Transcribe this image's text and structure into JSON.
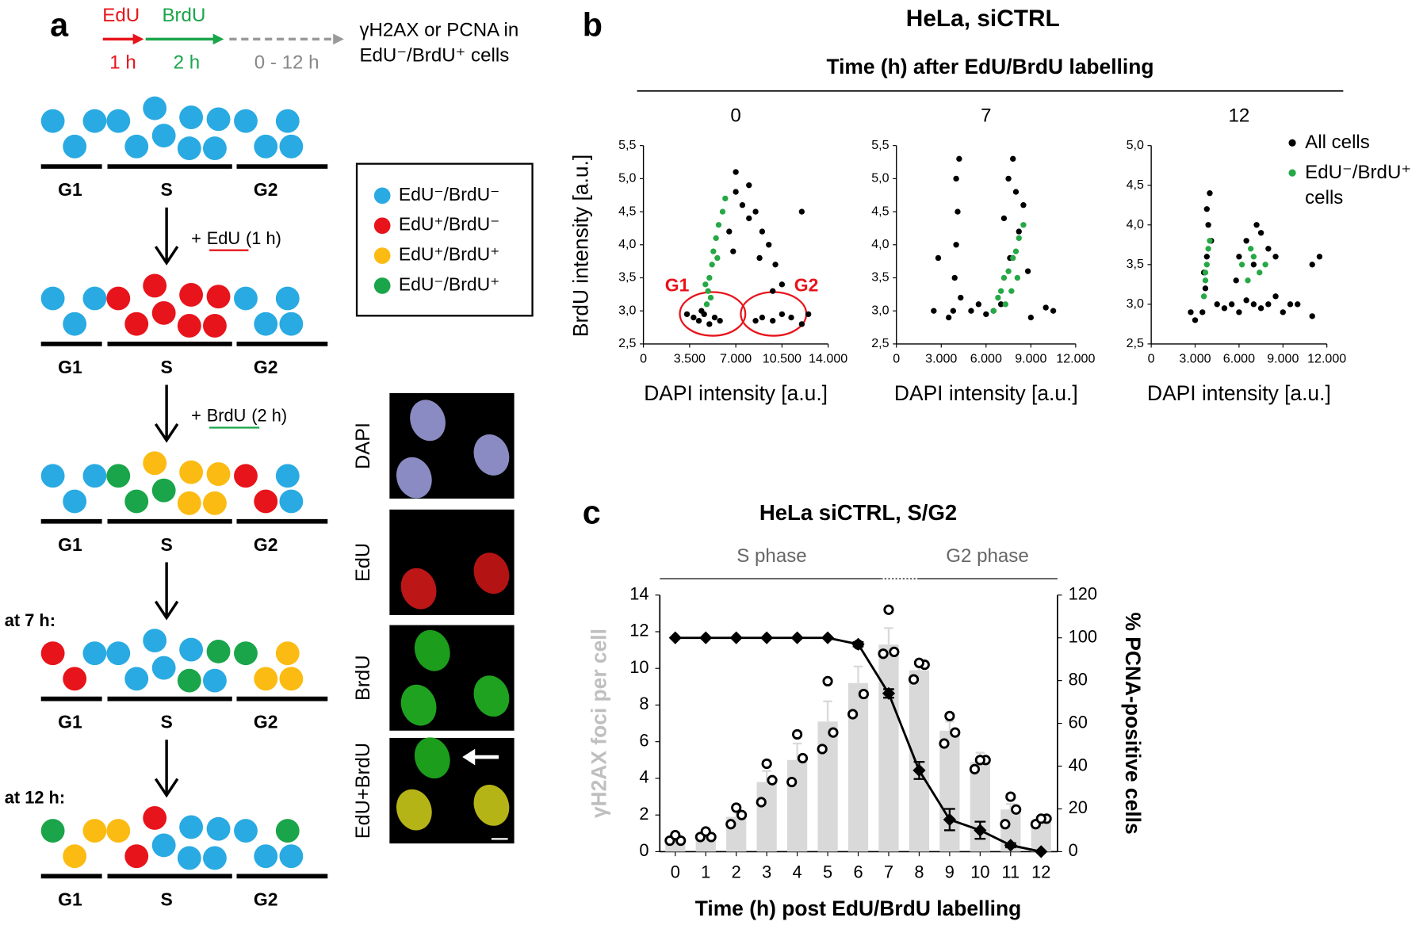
{
  "panel_labels": [
    "a",
    "b",
    "c"
  ],
  "scheme": {
    "timeline": {
      "pulse1": "EdU",
      "pulse2": "BrdU",
      "duration1": "1 h",
      "duration2": "2 h",
      "chase": "0 - 12 h",
      "readout": [
        "γH2AX or PCNA in",
        "EdU⁻/BrdU⁺ cells"
      ]
    },
    "phases": [
      "G1",
      "S",
      "G2"
    ],
    "steps": [
      {
        "prefix": "+",
        "agent": "EdU",
        "duration": "(1 h)"
      },
      {
        "prefix": "+",
        "agent": "BrdU",
        "duration": "(2 h)"
      },
      {
        "label": "at 7 h:"
      },
      {
        "label": "at 12 h:"
      }
    ],
    "legend": [
      "EdU⁻/BrdU⁻",
      "EdU⁺/BrdU⁻",
      "EdU⁺/BrdU⁺",
      "EdU⁻/BrdU⁺"
    ],
    "images": [
      "DAPI",
      "EdU",
      "BrdU",
      "EdU+BrdU"
    ]
  },
  "figure_b": {
    "title": "HeLa, siCTRL",
    "subtitle": "Time (h) after EdU/BrdU labelling"
  },
  "chart_data": [
    {
      "type": "scatter",
      "title": "0",
      "xlabel": "DAPI intensity [a.u.]",
      "ylabel": "BrdU intensity [a.u.]",
      "xlim": [
        0,
        14000
      ],
      "xticks": [
        0,
        {
          "value": 3500,
          "label": "3.500"
        },
        {
          "value": 7000,
          "label": "7.000"
        },
        {
          "value": 10500,
          "label": "10.500"
        },
        {
          "value": 14000,
          "label": "14.000"
        }
      ],
      "ylim": [
        2.5,
        5.5
      ],
      "yticks": [
        {
          "value": 2.5,
          "label": "2,5"
        },
        {
          "value": 3,
          "label": "3,0"
        },
        {
          "value": 3.5,
          "label": "3,5"
        },
        {
          "value": 4,
          "label": "4,0"
        },
        {
          "value": 4.5,
          "label": "4,5"
        },
        {
          "value": 5,
          "label": "5,0"
        },
        {
          "value": 5.5,
          "label": "5,5"
        }
      ],
      "annotations": [
        "G1",
        "G2"
      ],
      "annotation_color": "#e8141b",
      "series": [
        {
          "color": "#000000",
          "x": [
            3800,
            4200,
            4600,
            5000,
            5400,
            4400,
            5800,
            3300,
            6500,
            7000,
            7500,
            8000,
            8500,
            9000,
            9500,
            10000,
            10500,
            7000,
            8000,
            6800,
            8800,
            9800,
            9000,
            9800,
            10500,
            11200,
            12000,
            12500,
            8500,
            12000
          ],
          "values": [
            2.9,
            2.85,
            2.95,
            2.8,
            2.9,
            3.0,
            2.85,
            2.95,
            4.2,
            4.8,
            4.6,
            4.4,
            4.5,
            4.2,
            4.0,
            3.7,
            3.4,
            5.1,
            4.9,
            3.9,
            3.8,
            3.3,
            2.9,
            2.85,
            2.95,
            2.9,
            2.8,
            2.95,
            2.85,
            4.5
          ]
        },
        {
          "color": "#27a846",
          "x": [
            4800,
            4900,
            5000,
            5200,
            5300,
            5500,
            5700,
            6000,
            6200,
            4700,
            5100,
            5600
          ],
          "values": [
            3.1,
            3.3,
            3.5,
            3.7,
            3.9,
            4.1,
            4.3,
            4.5,
            4.7,
            3.4,
            3.2,
            3.8
          ]
        }
      ]
    },
    {
      "type": "scatter",
      "title": "7",
      "xlabel": "DAPI intensity [a.u.]",
      "xlim": [
        0,
        12000
      ],
      "xticks": [
        0,
        {
          "value": 3000,
          "label": "3.000"
        },
        {
          "value": 6000,
          "label": "6.000"
        },
        {
          "value": 9000,
          "label": "9.000"
        },
        {
          "value": 12000,
          "label": "12.000"
        }
      ],
      "ylim": [
        2.5,
        5.5
      ],
      "yticks": [
        {
          "value": 2.5,
          "label": "2,5"
        },
        {
          "value": 3,
          "label": "3,0"
        },
        {
          "value": 3.5,
          "label": "3,5"
        },
        {
          "value": 4,
          "label": "4,0"
        },
        {
          "value": 4.5,
          "label": "4,5"
        },
        {
          "value": 5,
          "label": "5,0"
        },
        {
          "value": 5.5,
          "label": "5,5"
        }
      ],
      "series": [
        {
          "color": "#000000",
          "x": [
            2800,
            3800,
            3900,
            4000,
            4100,
            4000,
            4200,
            4300,
            3500,
            5000,
            5500,
            6000,
            6500,
            7000,
            2500,
            9000,
            10000,
            7200,
            7500,
            7800,
            8000,
            8200,
            7600,
            8500,
            8800,
            10500
          ],
          "values": [
            3.8,
            3.0,
            3.5,
            4.0,
            4.5,
            5.0,
            5.3,
            3.2,
            2.9,
            3.0,
            3.1,
            2.95,
            3.0,
            3.1,
            3.0,
            2.9,
            3.05,
            4.4,
            5.0,
            5.3,
            4.8,
            4.2,
            3.8,
            4.6,
            3.6,
            3.0
          ]
        },
        {
          "color": "#27a846",
          "x": [
            6500,
            6800,
            7000,
            7200,
            7500,
            7800,
            8000,
            8200,
            8500,
            7300,
            7700,
            8100
          ],
          "values": [
            3.0,
            3.2,
            3.3,
            3.5,
            3.6,
            3.8,
            3.9,
            4.1,
            4.3,
            3.1,
            3.3,
            3.5
          ]
        }
      ]
    },
    {
      "type": "scatter",
      "title": "12",
      "xlabel": "DAPI intensity [a.u.]",
      "xlim": [
        0,
        12000
      ],
      "xticks": [
        0,
        {
          "value": 3000,
          "label": "3.000"
        },
        {
          "value": 6000,
          "label": "6.000"
        },
        {
          "value": 9000,
          "label": "9.000"
        },
        {
          "value": 12000,
          "label": "12.000"
        }
      ],
      "ylim": [
        2.5,
        5.0
      ],
      "yticks": [
        {
          "value": 2.5,
          "label": "2,5"
        },
        {
          "value": 3,
          "label": "3,0"
        },
        {
          "value": 3.5,
          "label": "3,5"
        },
        {
          "value": 4,
          "label": "4,0"
        },
        {
          "value": 4.5,
          "label": "4,5"
        },
        {
          "value": 5,
          "label": "5,0"
        }
      ],
      "legend": "upper right",
      "series": [
        {
          "name": "All cells",
          "color": "#000000",
          "x": [
            3500,
            3700,
            3800,
            3900,
            4000,
            3600,
            4100,
            3800,
            3000,
            2700,
            4500,
            5000,
            5500,
            6000,
            6500,
            7000,
            7500,
            8000,
            8500,
            9000,
            9500,
            10000,
            6000,
            6500,
            7000,
            7500,
            8000,
            8500,
            7200,
            11500,
            11000,
            11000,
            5800
          ],
          "values": [
            2.9,
            3.2,
            3.6,
            4.0,
            4.4,
            3.4,
            3.8,
            4.2,
            2.8,
            2.9,
            3.0,
            2.95,
            3.0,
            2.9,
            3.05,
            3.0,
            2.95,
            3.0,
            3.1,
            2.9,
            3.0,
            3.0,
            3.6,
            3.8,
            3.5,
            3.9,
            3.7,
            3.6,
            4.0,
            3.6,
            3.5,
            2.85,
            3.3
          ]
        },
        {
          "name": "EdU⁻/BrdU⁺ cells",
          "color": "#27a846",
          "x": [
            3600,
            3700,
            3800,
            3900,
            4000,
            3700,
            6200,
            6600,
            7000,
            7400,
            7800,
            6800
          ],
          "values": [
            3.1,
            3.3,
            3.5,
            3.7,
            3.8,
            3.4,
            3.5,
            3.3,
            3.6,
            3.4,
            3.5,
            3.7
          ]
        }
      ]
    },
    {
      "type": "bar",
      "title": "HeLa siCTRL, S/G2",
      "annotations": [
        "S phase",
        "G2 phase"
      ],
      "categories": [
        "0",
        "1",
        "2",
        "3",
        "4",
        "5",
        "6",
        "7",
        "8",
        "9",
        "10",
        "11",
        "12"
      ],
      "xlabel": "Time (h) post EdU/BrdU labelling",
      "ylabel": "γH2AX foci per cell",
      "ylabel_color": "#bfbfbf",
      "y2label": "% PCNA-positive cells",
      "ylim": [
        0,
        14
      ],
      "yticks": [
        0,
        2,
        4,
        6,
        8,
        10,
        12,
        14
      ],
      "y2lim": [
        0,
        120
      ],
      "y2ticks": [
        0,
        20,
        40,
        60,
        80,
        100,
        120
      ],
      "series": [
        {
          "type": "bar",
          "color": "#d9d9d9",
          "values": [
            0.7,
            0.9,
            1.9,
            3.8,
            5.0,
            7.1,
            9.2,
            11.3,
            9.9,
            6.6,
            4.9,
            2.3,
            1.7
          ],
          "errors": [
            0.1,
            0.1,
            0.4,
            0.6,
            0.9,
            1.1,
            0.9,
            0.9,
            0.4,
            0.5,
            0.5,
            0.3,
            0.2
          ]
        },
        {
          "type": "points",
          "color": "#000000",
          "values": [
            [
              0.6,
              0.6,
              0.9
            ],
            [
              0.8,
              0.8,
              1.1
            ],
            [
              1.5,
              2.0,
              2.4
            ],
            [
              2.7,
              3.9,
              4.8
            ],
            [
              3.8,
              5.1,
              6.4
            ],
            [
              5.6,
              6.5,
              9.3
            ],
            [
              7.5,
              8.6,
              11.3
            ],
            [
              10.8,
              10.9,
              13.2
            ],
            [
              9.4,
              10.2,
              10.3
            ],
            [
              5.9,
              6.5,
              7.4
            ],
            [
              4.5,
              5.0,
              5.0
            ],
            [
              1.5,
              2.3,
              3.0
            ],
            [
              1.5,
              1.8,
              1.8
            ]
          ]
        },
        {
          "type": "line",
          "axis": "y2",
          "color": "#000000",
          "values": [
            100,
            100,
            100,
            100,
            100,
            100,
            97,
            74,
            38,
            15,
            10,
            3,
            0
          ],
          "errors": [
            0,
            0,
            0,
            0,
            0,
            0,
            1,
            2,
            4,
            5,
            4,
            1,
            0
          ]
        }
      ]
    }
  ]
}
